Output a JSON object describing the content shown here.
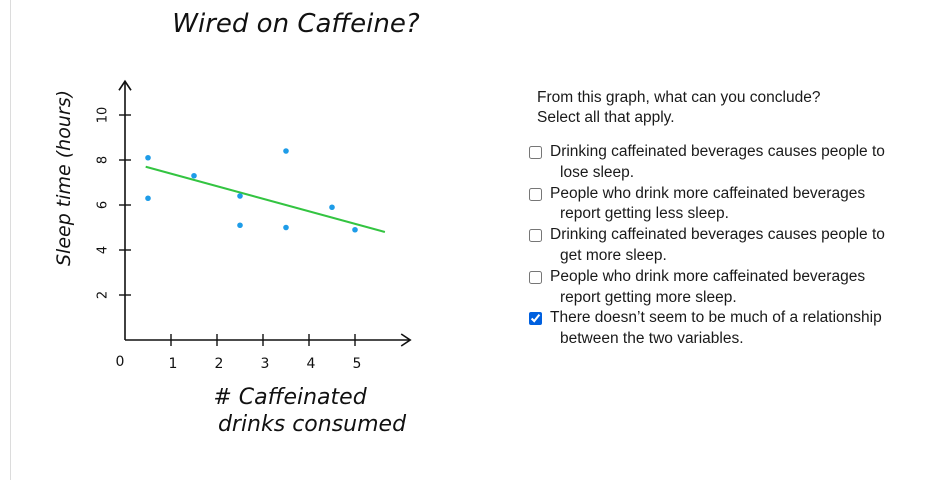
{
  "chart_data": {
    "type": "scatter",
    "title": "Wired on Caffeine?",
    "xlabel": "# Caffeinated drinks consumed",
    "xlabel_lines": [
      "# Caffeinated",
      "drinks consumed"
    ],
    "ylabel": "Sleep time (hours)",
    "x_ticks": [
      1,
      2,
      3,
      4,
      5
    ],
    "x_tick_labels": [
      "1",
      "2",
      "3",
      "4",
      "5"
    ],
    "y_ticks": [
      2,
      4,
      6,
      8,
      10
    ],
    "y_tick_labels": [
      "2",
      "4",
      "6",
      "8",
      "10"
    ],
    "origin_label": "0",
    "xlim": [
      0,
      6.2
    ],
    "ylim": [
      0,
      11.5
    ],
    "grid": false,
    "points": [
      {
        "x": 0.5,
        "y": 8.1
      },
      {
        "x": 0.5,
        "y": 6.3
      },
      {
        "x": 1.5,
        "y": 7.3
      },
      {
        "x": 2.5,
        "y": 6.4
      },
      {
        "x": 2.5,
        "y": 5.1
      },
      {
        "x": 3.5,
        "y": 8.4
      },
      {
        "x": 3.5,
        "y": 5.0
      },
      {
        "x": 4.5,
        "y": 5.9
      },
      {
        "x": 5.0,
        "y": 4.9
      }
    ],
    "trend_line": {
      "x0": 0.45,
      "y0": 7.7,
      "x1": 5.65,
      "y1": 4.8
    },
    "colors": {
      "points": "#1e9ce8",
      "trend_line": "#33c441",
      "axes": "#111111"
    }
  },
  "question": {
    "prompt_lines": [
      "From this graph, what can you conclude?",
      "Select all that apply."
    ],
    "options": [
      {
        "label": "Drinking caffeinated beverages causes people to lose sleep.",
        "checked": false
      },
      {
        "label": "People who drink more caffeinated beverages report getting less sleep.",
        "checked": false
      },
      {
        "label": "Drinking caffeinated beverages causes people to get more sleep.",
        "checked": false
      },
      {
        "label": "People who drink more caffeinated beverages report getting more sleep.",
        "checked": false
      },
      {
        "label": "There doesn’t seem to be much of a relationship between the two variables.",
        "checked": true
      }
    ]
  }
}
